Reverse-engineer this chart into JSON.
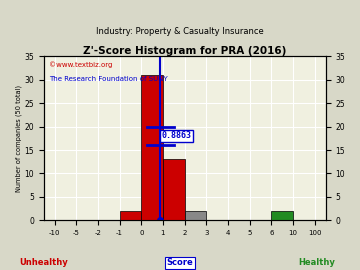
{
  "title": "Z'-Score Histogram for PRA (2016)",
  "subtitle": "Industry: Property & Casualty Insurance",
  "watermark1": "©www.textbiz.org",
  "watermark2": "The Research Foundation of SUNY",
  "xlabel_center": "Score",
  "xlabel_left": "Unhealthy",
  "xlabel_right": "Healthy",
  "ylabel": "Number of companies (50 total)",
  "bin_lefts": [
    -10,
    -5,
    -2,
    -1,
    0,
    1,
    2,
    3,
    4,
    5,
    6,
    10
  ],
  "bin_rights": [
    -5,
    -2,
    -1,
    0,
    1,
    2,
    3,
    4,
    5,
    6,
    10,
    100
  ],
  "bin_counts": [
    0,
    0,
    0,
    2,
    31,
    13,
    2,
    0,
    0,
    0,
    2,
    0
  ],
  "bin_colors": [
    "#cc0000",
    "#cc0000",
    "#cc0000",
    "#cc0000",
    "#cc0000",
    "#cc0000",
    "#888888",
    "#888888",
    "#888888",
    "#888888",
    "#228B22",
    "#228B22"
  ],
  "xtick_vals": [
    -10,
    -5,
    -2,
    -1,
    0,
    1,
    2,
    3,
    4,
    5,
    6,
    10,
    100
  ],
  "xtick_labels": [
    "-10",
    "-5",
    "-2",
    "-1",
    "0",
    "1",
    "2",
    "3",
    "4",
    "5",
    "6",
    "10",
    "100"
  ],
  "pra_score": 0.8863,
  "pra_score_label": "0.8863",
  "pra_line_color": "#0000cc",
  "mean_y": 20,
  "std_half_width_x": 0.6,
  "ylim": [
    0,
    35
  ],
  "yticks": [
    0,
    5,
    10,
    15,
    20,
    25,
    30,
    35
  ],
  "bg_color": "#d8d8c8",
  "plot_bg_color": "#f0f0e0",
  "title_color": "#000000",
  "subtitle_color": "#000000",
  "unhealthy_color": "#cc0000",
  "healthy_color": "#228B22",
  "score_label_color": "#0000cc",
  "watermark1_color": "#cc0000",
  "watermark2_color": "#0000cc"
}
